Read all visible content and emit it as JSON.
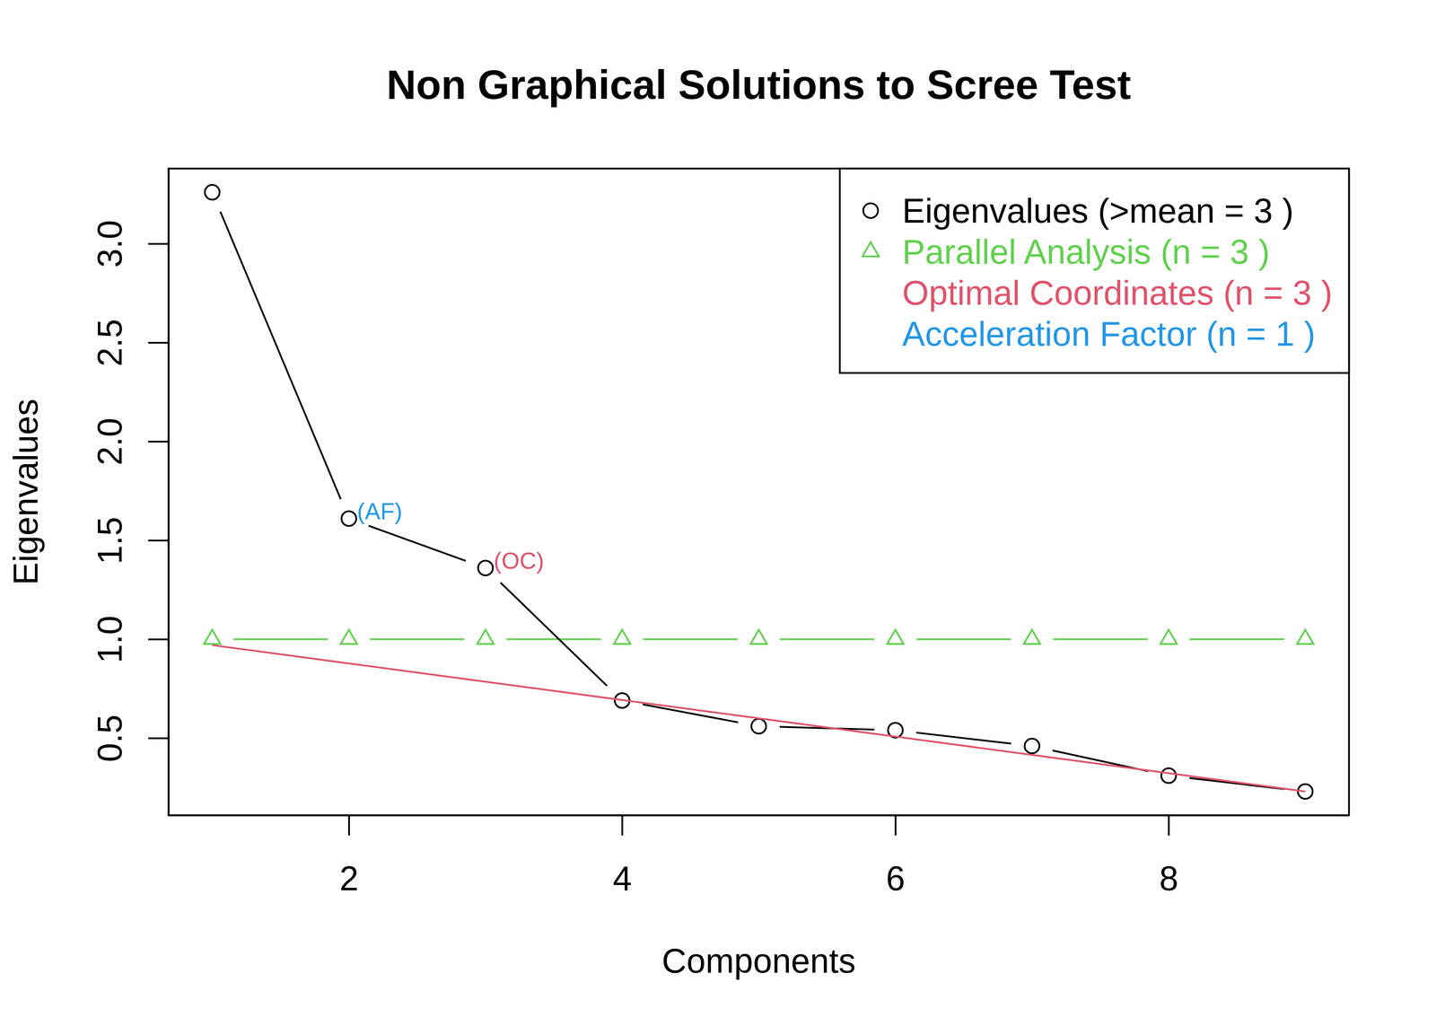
{
  "chart_data": {
    "type": "line",
    "title": "Non Graphical Solutions to Scree Test",
    "x_label": "Components",
    "y_label": "Eigenvalues",
    "x": [
      1,
      2,
      3,
      4,
      5,
      6,
      7,
      8,
      9
    ],
    "xlim": [
      0.68,
      9.32
    ],
    "xticks": [
      2,
      4,
      6,
      8
    ],
    "ylim": [
      0.11,
      3.38
    ],
    "yticks": [
      0.5,
      {
        "value": 1,
        "label": "1.0"
      },
      1.5,
      {
        "value": 2,
        "label": "2.0"
      },
      2.5,
      {
        "value": 3,
        "label": "3.0"
      }
    ],
    "grid": false,
    "legend": "topright",
    "series": [
      {
        "name": "Eigenvalues (>mean  =  3 )",
        "color": "#000000",
        "marker": "circle",
        "line_style": "solid",
        "values": [
          3.26,
          1.61,
          1.36,
          0.69,
          0.56,
          0.54,
          0.46,
          0.31,
          0.23
        ]
      },
      {
        "name": "Parallel Analysis (n =  3 )",
        "color": "#61D04F",
        "marker": "triangle",
        "line_style": "solid",
        "values": [
          1,
          1,
          1,
          1,
          1,
          1,
          1,
          1,
          1
        ]
      },
      {
        "name": "Optimal Coordinates (n =  3 )",
        "color": "#DF536B",
        "marker": "none",
        "line_style": "solid",
        "x": [
          1,
          9
        ],
        "values": [
          0.97,
          0.23
        ]
      },
      {
        "name": "Acceleration Factor (n =  1 )",
        "color": "#2297E6",
        "marker": "none",
        "line_style": "none",
        "values": [
          null,
          null,
          null,
          null,
          null,
          null,
          null,
          null,
          null
        ]
      }
    ],
    "annotations": [
      {
        "text": "(AF)",
        "x": 2,
        "color": "#2297E6"
      },
      {
        "text": "(OC)",
        "x": 3,
        "color": "#DF536B"
      }
    ]
  }
}
